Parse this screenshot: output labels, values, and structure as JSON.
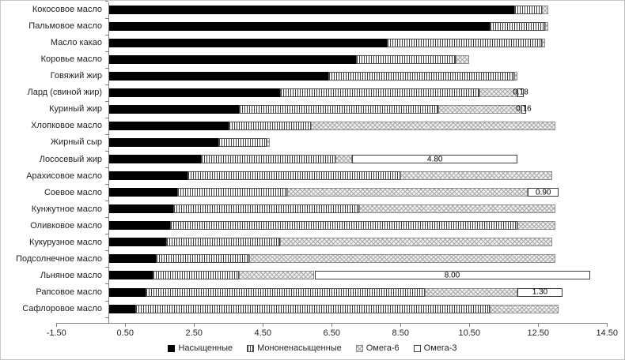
{
  "chart_data": {
    "type": "bar",
    "orientation": "horizontal",
    "stacked": true,
    "grid": false,
    "legend_position": "bottom",
    "title": "",
    "xlabel": "",
    "ylabel": "",
    "categories": [
      "Кокосовое масло",
      "Пальмовое масло",
      "Масло какао",
      "Коровье масло",
      "Говяжий жир",
      "Лард (свиной жир)",
      "Куриный жир",
      "Хлопковое масло",
      "Жирный сыр",
      "Лососевый жир",
      "Арахисовое масло",
      "Соевое масло",
      "Кунжутное масло",
      "Оливковое масло",
      "Кукурузное масло",
      "Подсолнечное масло",
      "Льняное масло",
      "Рапсовое масло",
      "Сафлоровое масло"
    ],
    "series": [
      {
        "name": "Насыщенные",
        "pattern": "solid-black",
        "color": "#000000",
        "values": [
          11.8,
          11.1,
          8.1,
          7.2,
          6.4,
          5.0,
          3.8,
          3.5,
          3.2,
          2.7,
          2.3,
          2.0,
          1.9,
          1.8,
          1.7,
          1.4,
          1.3,
          1.1,
          0.8
        ]
      },
      {
        "name": "Мононенасыщенные",
        "pattern": "vertical-stripes",
        "color": "#ffffff",
        "values": [
          0.8,
          1.6,
          4.5,
          2.9,
          5.4,
          5.8,
          5.8,
          2.4,
          1.4,
          3.9,
          6.2,
          3.2,
          5.4,
          10.1,
          3.3,
          2.7,
          2.5,
          8.1,
          10.3
        ]
      },
      {
        "name": "Омега-6",
        "pattern": "diagonal-crosshatch",
        "color": "#f0f0f0",
        "values": [
          0.2,
          0.1,
          0.1,
          0.4,
          0.1,
          1.1,
          2.4,
          7.1,
          0.1,
          0.5,
          4.4,
          7.0,
          5.7,
          1.1,
          7.9,
          8.9,
          2.2,
          2.7,
          2.0
        ]
      },
      {
        "name": "Омега-3",
        "pattern": "white",
        "color": "#ffffff",
        "values": [
          0,
          0,
          0,
          0,
          0,
          0.18,
          0.16,
          0,
          0,
          4.8,
          0,
          0.9,
          0,
          0,
          0,
          0,
          8.0,
          1.3,
          0
        ]
      }
    ],
    "data_labels": [
      "",
      "",
      "",
      "",
      "",
      "0.18",
      "0.16",
      "",
      "",
      "4.80",
      "",
      "0.90",
      "",
      "",
      "",
      "",
      "8.00",
      "1.30",
      ""
    ],
    "x_axis": {
      "min": -1.5,
      "max": 14.5,
      "tick_values": [
        -1.5,
        0.5,
        2.5,
        4.5,
        6.5,
        8.5,
        10.5,
        12.5,
        14.5
      ],
      "tick_labels": [
        "-1.50",
        "0.50",
        "2.50",
        "4.50",
        "6.50",
        "8.50",
        "10.50",
        "12.50",
        "14.50"
      ]
    },
    "legend": [
      "Насыщенные",
      "Мононенасыщенные",
      "Омега-6",
      "Омега-3"
    ]
  }
}
